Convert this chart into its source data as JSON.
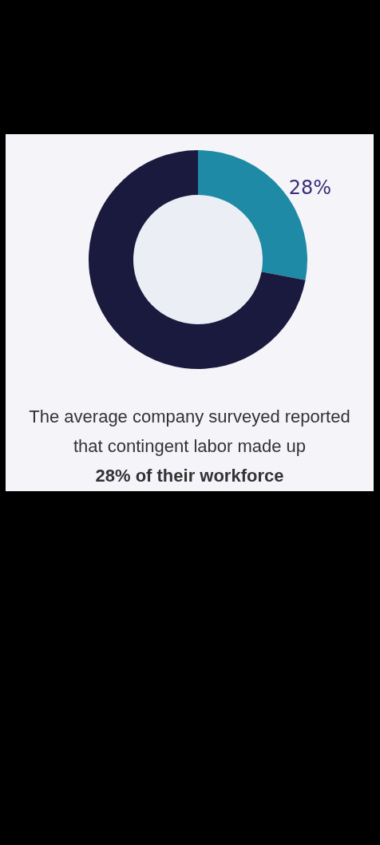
{
  "chart_data": {
    "type": "donut",
    "categories": [
      null,
      null
    ],
    "values": [
      28,
      72
    ],
    "colors": [
      "#1e8aa6",
      "#1a1a3e"
    ],
    "value_labels": [
      "28%",
      null
    ],
    "annotations": [
      "The average company surveyed reported that contingent labor made up",
      "28% of their workforce"
    ]
  }
}
